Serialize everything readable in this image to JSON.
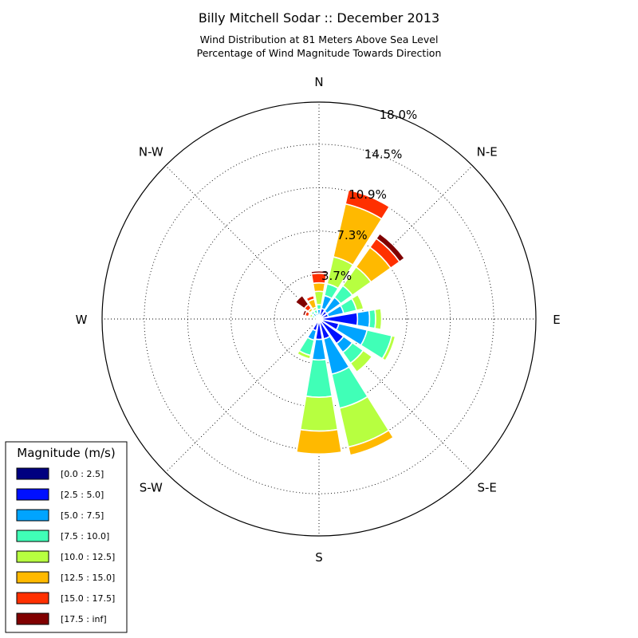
{
  "chart_data": {
    "type": "windrose",
    "title": "Billy Mitchell Sodar :: December 2013",
    "subtitle_lines": [
      "Wind Distribution at 81 Meters Above Sea Level",
      "Percentage of Wind Magnitude Towards Direction"
    ],
    "directions": [
      "N",
      "N-E",
      "E",
      "S-E",
      "S",
      "S-W",
      "W",
      "N-W"
    ],
    "radial_ticks": [
      {
        "value": 3.7,
        "label": "3.7%"
      },
      {
        "value": 7.3,
        "label": "7.3%"
      },
      {
        "value": 10.9,
        "label": "10.9%"
      },
      {
        "value": 14.5,
        "label": "14.5%"
      },
      {
        "value": 18.0,
        "label": "18.0%"
      }
    ],
    "rmax": 18.0,
    "legend": {
      "title": "Magnitude (m/s)",
      "placement": "lower-left",
      "items": [
        {
          "label": "[0.0 : 2.5]",
          "color": "#000080"
        },
        {
          "label": "[2.5 : 5.0]",
          "color": "#0010ff"
        },
        {
          "label": "[5.0 : 7.5]",
          "color": "#00a4ff"
        },
        {
          "label": "[7.5 : 10.0]",
          "color": "#40ffb7"
        },
        {
          "label": "[10.0 : 12.5]",
          "color": "#b7ff40"
        },
        {
          "label": "[12.5 : 15.0]",
          "color": "#ffb900"
        },
        {
          "label": "[15.0 : 17.5]",
          "color": "#ff3000"
        },
        {
          "label": "[17.5 : inf]",
          "color": "#800000"
        }
      ]
    },
    "sector_centers_deg": [
      0,
      22.5,
      45,
      67.5,
      90,
      112.5,
      135,
      157.5,
      180,
      202.5,
      225,
      247.5,
      270,
      292.5,
      315,
      337.5
    ],
    "cumulative_percent": [
      [
        0.1,
        0.3,
        0.8,
        1.2,
        2.3,
        3.0,
        3.8,
        4.0
      ],
      [
        0.2,
        0.9,
        2.0,
        3.0,
        5.3,
        9.8,
        11.0,
        11.1
      ],
      [
        0.2,
        0.8,
        2.2,
        3.4,
        5.3,
        7.3,
        8.2,
        8.7
      ],
      [
        0.2,
        0.8,
        2.1,
        3.2,
        3.8,
        3.9,
        3.9,
        3.9
      ],
      [
        0.2,
        3.2,
        4.2,
        4.7,
        5.2,
        5.2,
        5.2,
        5.2
      ],
      [
        0.2,
        1.7,
        4.1,
        6.2,
        6.5,
        6.5,
        6.5,
        6.5
      ],
      [
        0.3,
        2.5,
        3.4,
        4.5,
        5.4,
        5.4,
        5.4,
        5.4
      ],
      [
        0.2,
        1.7,
        4.7,
        7.6,
        10.9,
        11.6,
        11.6,
        11.6
      ],
      [
        0.2,
        1.7,
        3.4,
        6.5,
        9.3,
        11.2,
        11.2,
        11.2
      ],
      [
        0.2,
        1.0,
        1.8,
        3.1,
        3.4,
        3.4,
        3.4,
        3.4
      ],
      [
        0.1,
        0.2,
        0.4,
        0.5,
        0.6,
        0.6,
        0.6,
        0.6
      ],
      [
        0.1,
        0.1,
        0.2,
        0.3,
        0.3,
        0.3,
        0.3,
        0.3
      ],
      [
        0.1,
        0.1,
        0.1,
        0.1,
        0.1,
        0.1,
        0.1,
        0.1
      ],
      [
        0.1,
        0.2,
        0.4,
        0.6,
        0.8,
        0.9,
        1.2,
        1.4
      ],
      [
        0.1,
        0.3,
        0.6,
        0.8,
        0.9,
        1.1,
        1.5,
        2.4
      ],
      [
        0.1,
        0.3,
        0.5,
        0.8,
        1.0,
        1.7,
        2.0,
        2.0
      ]
    ]
  }
}
